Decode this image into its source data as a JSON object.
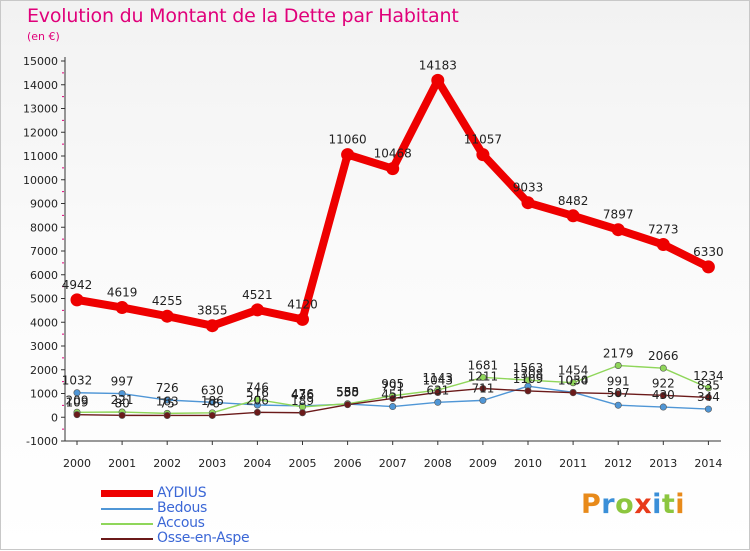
{
  "title": "Evolution du Montant de la Dette par Habitant",
  "subtitle": "(en €)",
  "logo": "Proxiti",
  "chart_data": {
    "type": "line",
    "x": [
      "2000",
      "2001",
      "2002",
      "2003",
      "2004",
      "2005",
      "2006",
      "2007",
      "2008",
      "2009",
      "2010",
      "2011",
      "2012",
      "2013",
      "2014"
    ],
    "ylim": [
      -1000,
      15000
    ],
    "yticks": [
      -1000,
      0,
      1000,
      2000,
      3000,
      4000,
      5000,
      6000,
      7000,
      8000,
      9000,
      10000,
      11000,
      12000,
      13000,
      14000,
      15000
    ],
    "grid": false,
    "legend_position": "bottom-left",
    "series": [
      {
        "name": "AYDIUS",
        "color": "#ee0000",
        "values": [
          4942,
          4619,
          4255,
          3855,
          4521,
          4120,
          11060,
          10468,
          14183,
          11057,
          9033,
          8482,
          7897,
          7273,
          6330
        ],
        "labels": [
          "4942",
          "4619",
          "4255",
          "3855",
          "4521",
          "4120",
          "11060",
          "10468",
          "14183",
          "11057",
          "9033",
          "8482",
          "7897",
          "7273",
          "6330"
        ]
      },
      {
        "name": "Bedous",
        "color": "#4f96d6",
        "values": [
          1032,
          997,
          726,
          630,
          516,
          476,
          555,
          451,
          631,
          711,
          1308,
          1050,
          507,
          430,
          344
        ],
        "labels": [
          "1032",
          "997",
          "726",
          "630",
          "516",
          "476",
          "555",
          "451",
          "631",
          "711",
          "1308",
          "1050",
          "507",
          "430",
          "344"
        ]
      },
      {
        "name": "Accous",
        "color": "#8fd65a",
        "values": [
          209,
          221,
          163,
          186,
          746,
          436,
          568,
          905,
          1143,
          1681,
          1563,
          1454,
          2179,
          2066,
          1234
        ],
        "labels": [
          "209",
          "221",
          "163",
          "186",
          "746",
          "436",
          "568",
          "905",
          "1143",
          "1681",
          "1563",
          "1454",
          "2179",
          "2066",
          "1234"
        ]
      },
      {
        "name": "Osse-en-Aspe",
        "color": "#6b1a1a",
        "values": [
          109,
          80,
          75,
          76,
          206,
          189,
          530,
          791,
          1043,
          1211,
          1109,
          1034,
          991,
          922,
          835
        ],
        "labels": [
          "109",
          "80",
          "75",
          "76",
          "206",
          "189",
          "530",
          "791",
          "1043",
          "1211",
          "1109",
          "1034",
          "991",
          "922",
          "835"
        ]
      }
    ]
  }
}
